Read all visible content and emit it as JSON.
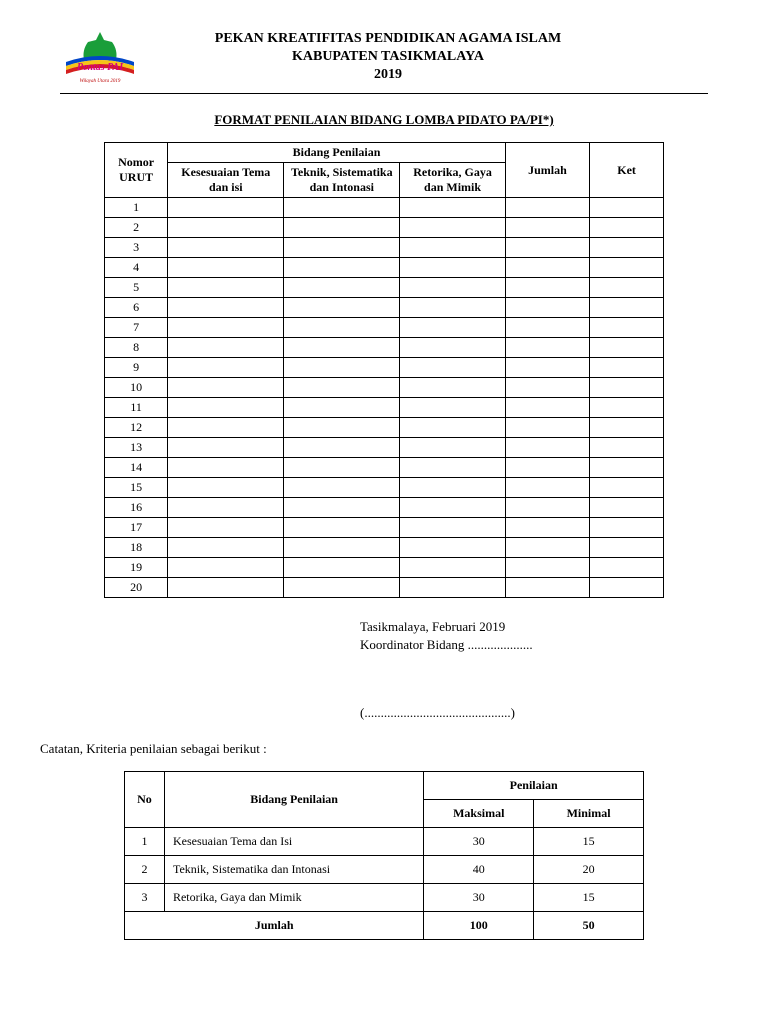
{
  "header": {
    "line1": "PEKAN KREATIFITAS PENDIDIKAN AGAMA ISLAM",
    "line2": "KABUPATEN TASIKMALAYA",
    "line3": "2019",
    "logo": {
      "top_text": "Pentas PAI",
      "bottom_text": "Wilayah Utara 2019",
      "dome_color": "#1a9e3a",
      "arc_blue": "#0046c8",
      "arc_red": "#d41f1f",
      "arc_yellow": "#f5c518",
      "text_color": "#d4007f"
    }
  },
  "form_title": "FORMAT PENILAIAN BIDANG LOMBA PIDATO PA/PI*)",
  "main_table": {
    "col_nomor": "Nomor URUT",
    "group_header": "Bidang Penilaian",
    "col_a": "Kesesuaian Tema dan isi",
    "col_b": "Teknik, Sistematika dan Intonasi",
    "col_c": "Retorika, Gaya dan Mimik",
    "col_jumlah": "Jumlah",
    "col_ket": "Ket",
    "row_count": 20
  },
  "signature": {
    "place_date": "Tasikmalaya,       Februari 2019",
    "role": "Koordinator Bidang ....................",
    "name_line": "(.............................................)"
  },
  "notes_label": "Catatan, Kriteria penilaian sebagai berikut :",
  "criteria": {
    "col_no": "No",
    "col_bidang": "Bidang Penilaian",
    "group_penilaian": "Penilaian",
    "col_max": "Maksimal",
    "col_min": "Minimal",
    "rows": [
      {
        "no": "1",
        "bidang": "Kesesuaian Tema dan Isi",
        "max": "30",
        "min": "15"
      },
      {
        "no": "2",
        "bidang": "Teknik, Sistematika dan Intonasi",
        "max": "40",
        "min": "20"
      },
      {
        "no": "3",
        "bidang": "Retorika, Gaya dan Mimik",
        "max": "30",
        "min": "15"
      }
    ],
    "total_label": "Jumlah",
    "total_max": "100",
    "total_min": "50"
  }
}
